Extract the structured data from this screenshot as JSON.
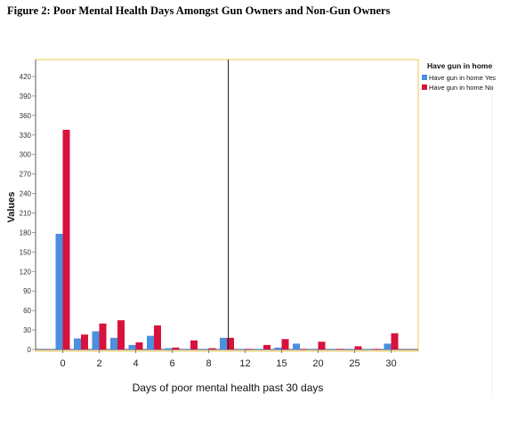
{
  "figure_title": "Figure 2: Poor Mental Health Days Amongst Gun Owners and Non-Gun Owners",
  "colors": {
    "yes": "#4a8fe0",
    "no": "#d8123c",
    "frame": "#f2d36b"
  },
  "chart_data": {
    "type": "bar",
    "xlabel": "Days of poor mental health past 30 days",
    "ylabel": "Values",
    "ylim": [
      0,
      420
    ],
    "yticks": [
      0,
      30,
      60,
      90,
      120,
      150,
      180,
      210,
      240,
      270,
      300,
      330,
      360,
      390,
      420
    ],
    "xtick_labels": [
      "0",
      "2",
      "4",
      "6",
      "8",
      "12",
      "15",
      "20",
      "25",
      "30"
    ],
    "legend_title": "Have gun in home",
    "series": [
      {
        "name": "Have gun in home Yes",
        "values": [
          178,
          17,
          28,
          18,
          7,
          21,
          2,
          1,
          1,
          18,
          1,
          1,
          3,
          9,
          1,
          1,
          1,
          1,
          9
        ]
      },
      {
        "name": "Have gun in home No",
        "values": [
          338,
          23,
          40,
          45,
          11,
          37,
          3,
          14,
          2,
          18,
          1,
          7,
          16,
          1,
          12,
          1,
          5,
          1,
          25
        ]
      }
    ],
    "annotations": [
      "vertical reference line between day 8 and day 12"
    ]
  }
}
